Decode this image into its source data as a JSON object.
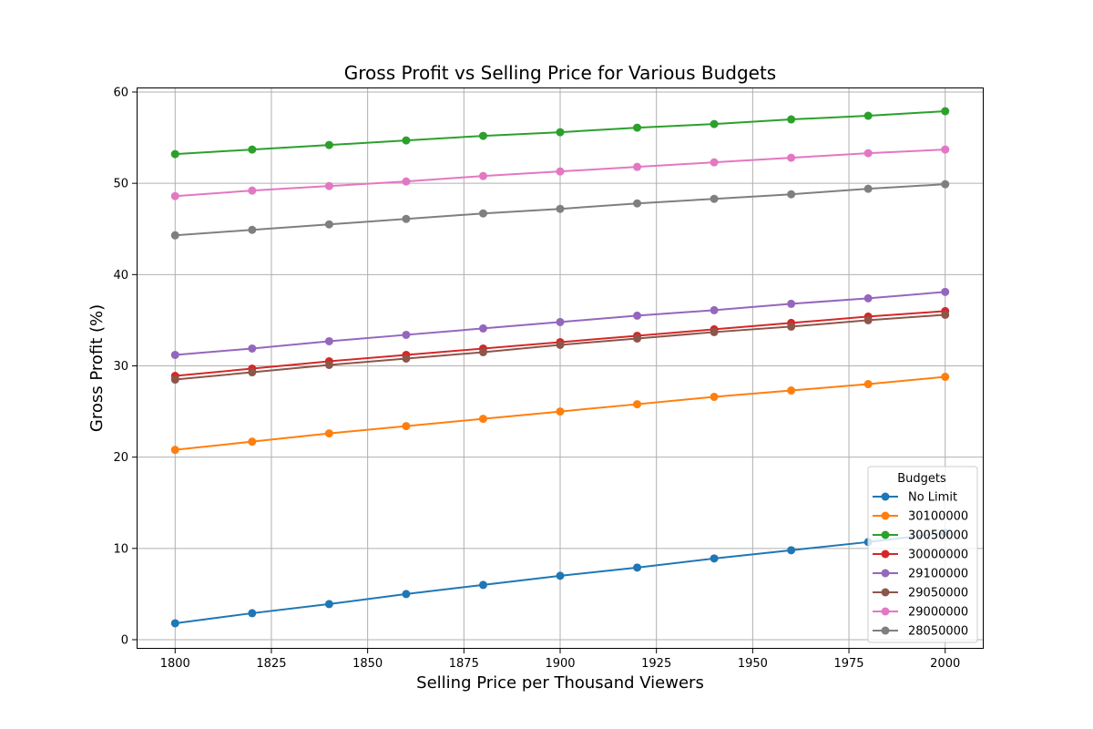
{
  "chart_data": {
    "type": "line",
    "title": "Gross Profit vs Selling Price for Various Budgets",
    "xlabel": "Selling Price per Thousand Viewers",
    "ylabel": "Gross Profit (%)",
    "xlim": [
      1790,
      2010
    ],
    "ylim": [
      -1,
      60.5
    ],
    "x_ticks": [
      1800,
      1825,
      1850,
      1875,
      1900,
      1925,
      1950,
      1975,
      2000
    ],
    "y_ticks": [
      0,
      10,
      20,
      30,
      40,
      50,
      60
    ],
    "grid": true,
    "legend": {
      "title": "Budgets",
      "position": "lower-right"
    },
    "x": [
      1800,
      1820,
      1840,
      1860,
      1880,
      1900,
      1920,
      1940,
      1960,
      1980,
      2000
    ],
    "series": [
      {
        "name": "No Limit",
        "color": "#1f77b4",
        "values": [
          1.8,
          2.9,
          3.9,
          5.0,
          6.0,
          7.0,
          7.9,
          8.9,
          9.8,
          10.7,
          11.7
        ]
      },
      {
        "name": "30100000",
        "color": "#ff7f0e",
        "values": [
          20.8,
          21.7,
          22.6,
          23.4,
          24.2,
          25.0,
          25.8,
          26.6,
          27.3,
          28.0,
          28.8
        ]
      },
      {
        "name": "30050000",
        "color": "#2ca02c",
        "values": [
          53.2,
          53.7,
          54.2,
          54.7,
          55.2,
          55.6,
          56.1,
          56.5,
          57.0,
          57.4,
          57.9
        ]
      },
      {
        "name": "30000000",
        "color": "#d62728",
        "values": [
          28.9,
          29.7,
          30.5,
          31.2,
          31.9,
          32.6,
          33.3,
          34.0,
          34.7,
          35.4,
          36.0
        ]
      },
      {
        "name": "29100000",
        "color": "#9467bd",
        "values": [
          31.2,
          31.9,
          32.7,
          33.4,
          34.1,
          34.8,
          35.5,
          36.1,
          36.8,
          37.4,
          38.1
        ]
      },
      {
        "name": "29050000",
        "color": "#8c564b",
        "values": [
          28.5,
          29.3,
          30.1,
          30.8,
          31.5,
          32.3,
          33.0,
          33.7,
          34.3,
          35.0,
          35.6
        ]
      },
      {
        "name": "29000000",
        "color": "#e377c2",
        "values": [
          48.6,
          49.2,
          49.7,
          50.2,
          50.8,
          51.3,
          51.8,
          52.3,
          52.8,
          53.3,
          53.7
        ]
      },
      {
        "name": "28050000",
        "color": "#7f7f7f",
        "values": [
          44.3,
          44.9,
          45.5,
          46.1,
          46.7,
          47.2,
          47.8,
          48.3,
          48.8,
          49.4,
          49.9
        ]
      }
    ]
  }
}
